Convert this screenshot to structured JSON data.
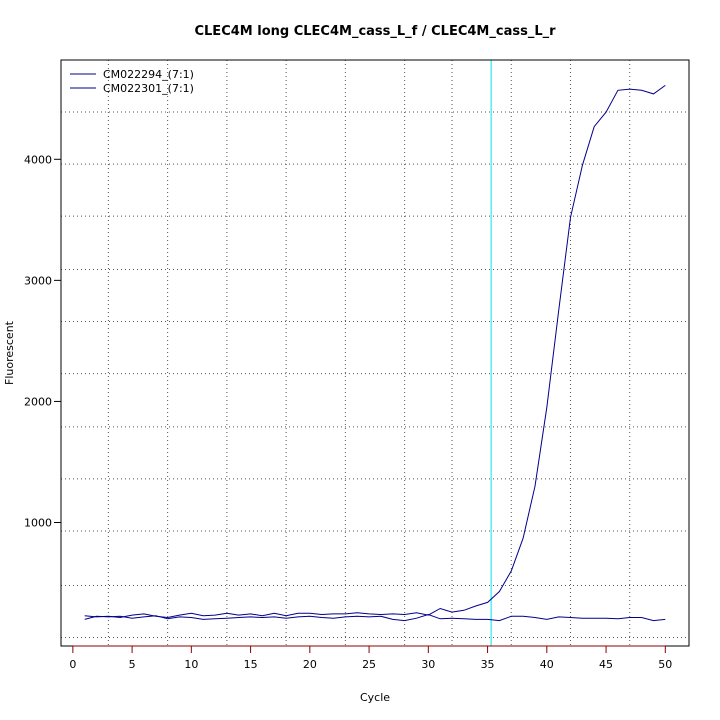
{
  "chart_data": {
    "type": "line",
    "title": "CLEC4M long CLEC4M_cass_L_f / CLEC4M_cass_L_r",
    "xlabel": "Cycle",
    "ylabel": "Fluorescent",
    "xlim": [
      -1,
      52
    ],
    "ylim": [
      -20,
      4820
    ],
    "xticks": [
      0,
      5,
      10,
      15,
      20,
      25,
      30,
      35,
      40,
      45,
      50
    ],
    "xtick_labels": [
      "0",
      "5",
      "10",
      "15",
      "20",
      "25",
      "30",
      "35",
      "40",
      "45",
      "50"
    ],
    "yticks": [
      1000,
      2000,
      3000,
      4000
    ],
    "ytick_labels": [
      "1000",
      "2000",
      "3000",
      "4000"
    ],
    "grid": true,
    "grid_x": [
      3,
      8,
      13,
      18,
      23,
      28,
      32,
      37,
      42,
      47
    ],
    "grid_y": [
      50,
      480,
      930,
      1360,
      1790,
      2230,
      2660,
      3090,
      3530,
      3960,
      4390
    ],
    "threshold_cycle": 35.3,
    "threshold_color": "#00e5ee",
    "legend_position": "top-left",
    "series": [
      {
        "name": "CM022294_(7:1)",
        "color": "#00008b",
        "x": [
          1,
          2,
          3,
          4,
          5,
          6,
          7,
          8,
          9,
          10,
          11,
          12,
          13,
          14,
          15,
          16,
          17,
          18,
          19,
          20,
          21,
          22,
          23,
          24,
          25,
          26,
          27,
          28,
          29,
          30,
          31,
          32,
          33,
          34,
          35,
          36,
          37,
          38,
          39,
          40,
          41,
          42,
          43,
          44,
          45,
          46,
          47,
          48,
          49,
          50
        ],
        "y": [
          230,
          220,
          225,
          215,
          235,
          245,
          225,
          215,
          235,
          250,
          230,
          235,
          250,
          235,
          245,
          230,
          250,
          230,
          250,
          250,
          240,
          245,
          245,
          255,
          245,
          240,
          245,
          240,
          255,
          235,
          290,
          260,
          275,
          310,
          340,
          430,
          600,
          870,
          1300,
          1950,
          2750,
          3520,
          3950,
          4270,
          4390,
          4570,
          4580,
          4570,
          4540,
          4610
        ]
      },
      {
        "name": "CM022301_(7:1)",
        "color": "#00008b",
        "x": [
          1,
          2,
          3,
          4,
          5,
          6,
          7,
          8,
          9,
          10,
          11,
          12,
          13,
          14,
          15,
          16,
          17,
          18,
          19,
          20,
          21,
          22,
          23,
          24,
          25,
          26,
          27,
          28,
          29,
          30,
          31,
          32,
          33,
          34,
          35,
          36,
          37,
          38,
          39,
          40,
          41,
          42,
          43,
          44,
          45,
          46,
          47,
          48,
          49,
          50
        ],
        "y": [
          200,
          225,
          220,
          225,
          210,
          220,
          230,
          205,
          220,
          215,
          200,
          205,
          210,
          215,
          220,
          215,
          220,
          210,
          220,
          225,
          215,
          210,
          220,
          225,
          220,
          225,
          200,
          190,
          210,
          240,
          205,
          210,
          205,
          200,
          200,
          190,
          225,
          225,
          215,
          200,
          220,
          215,
          210,
          210,
          210,
          205,
          215,
          215,
          190,
          200
        ]
      }
    ]
  }
}
